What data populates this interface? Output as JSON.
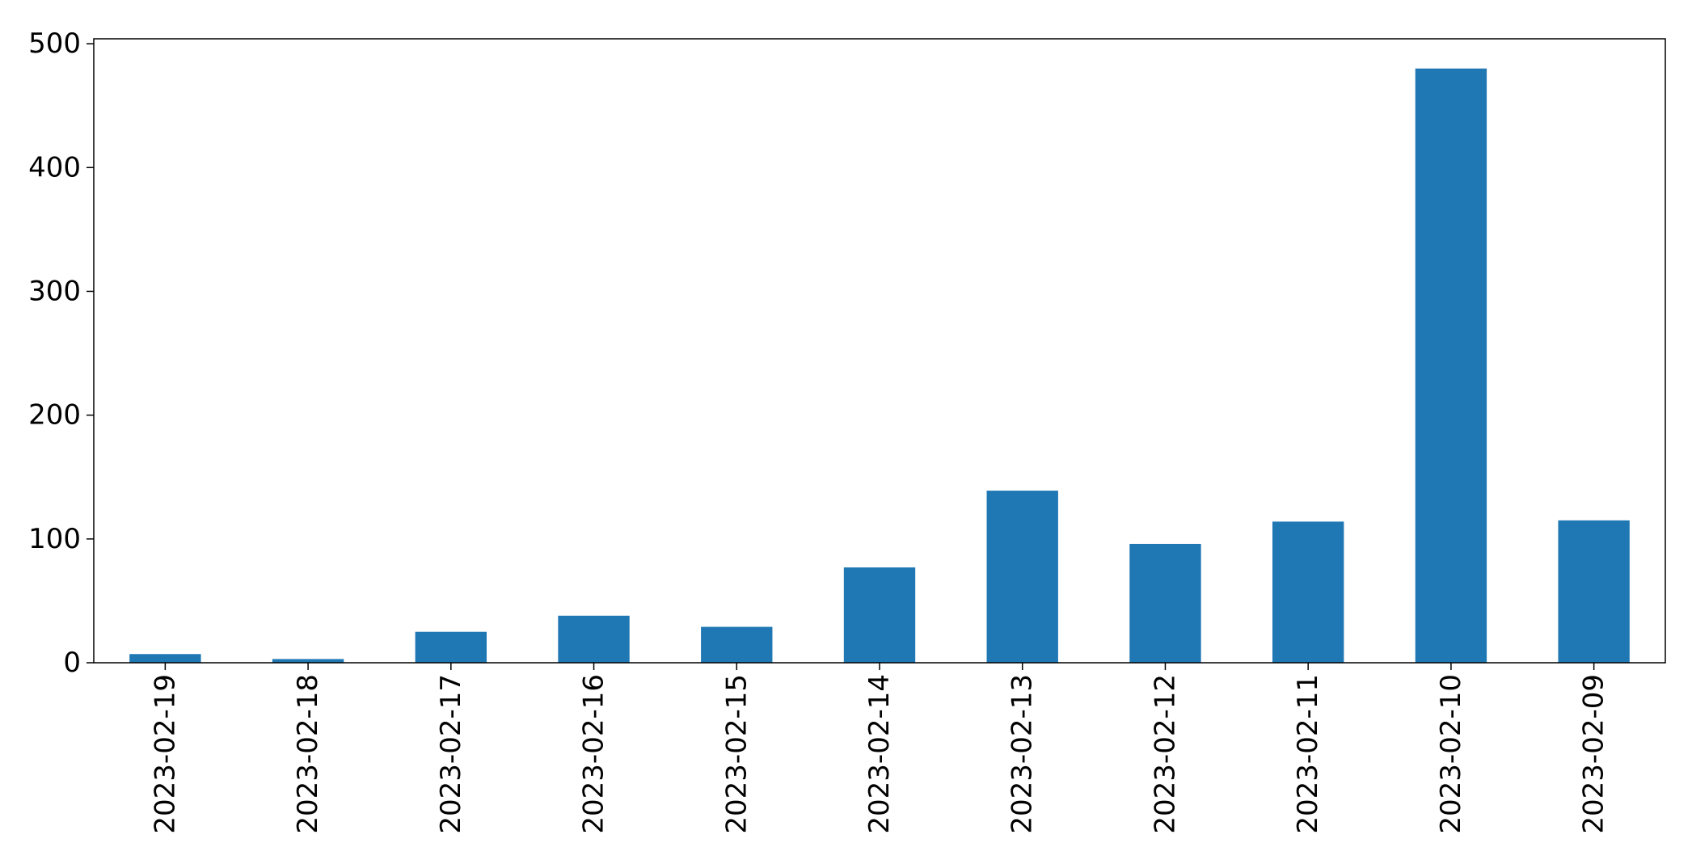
{
  "chart_data": {
    "type": "bar",
    "title": "",
    "xlabel": "",
    "ylabel": "",
    "categories": [
      "2023-02-19",
      "2023-02-18",
      "2023-02-17",
      "2023-02-16",
      "2023-02-15",
      "2023-02-14",
      "2023-02-13",
      "2023-02-12",
      "2023-02-11",
      "2023-02-10",
      "2023-02-09"
    ],
    "values": [
      7,
      3,
      25,
      38,
      29,
      77,
      139,
      96,
      114,
      480,
      115
    ],
    "ylim": [
      0,
      504
    ],
    "yticks": [
      0,
      100,
      200,
      300,
      400,
      500
    ],
    "grid": false,
    "legend": "none",
    "bar_color": "#1f77b4"
  }
}
